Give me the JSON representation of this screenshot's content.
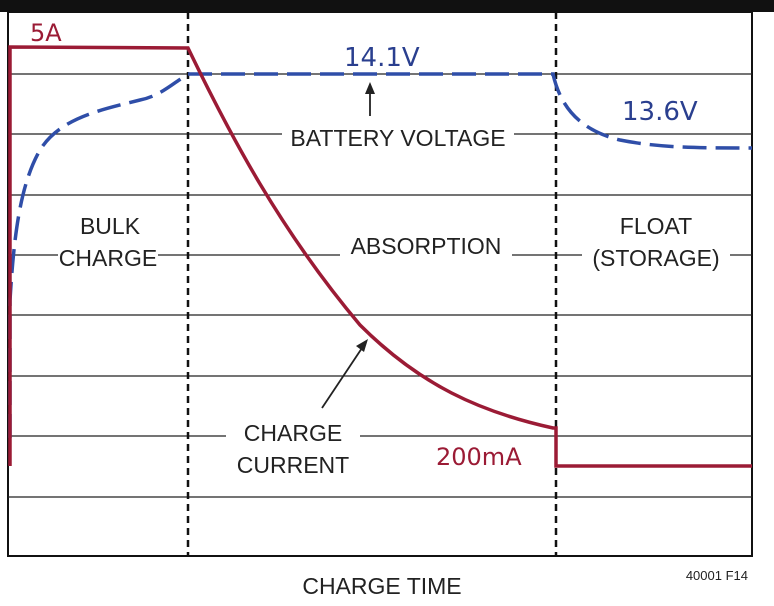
{
  "chart_data": {
    "type": "line",
    "title": "",
    "xlabel": "CHARGE TIME",
    "ylabel": "",
    "grid": true,
    "legend": "none",
    "figure_id": "40001 F14",
    "phases": [
      {
        "name": "bulk",
        "label_lines": [
          "BULK",
          "CHARGE"
        ]
      },
      {
        "name": "absorption",
        "label_lines": [
          "ABSORPTION"
        ]
      },
      {
        "name": "float",
        "label_lines": [
          "FLOAT",
          "(STORAGE)"
        ]
      }
    ],
    "series": [
      {
        "name": "BATTERY VOLTAGE",
        "color": "#2f4ea8",
        "style": "dashed",
        "marks": [
          "14.1V",
          "13.6V"
        ]
      },
      {
        "name": "CHARGE CURRENT",
        "label_lines": [
          "CHARGE",
          "CURRENT"
        ],
        "color": "#9b1b35",
        "style": "solid",
        "marks": [
          "5A",
          "200mA"
        ]
      }
    ]
  }
}
